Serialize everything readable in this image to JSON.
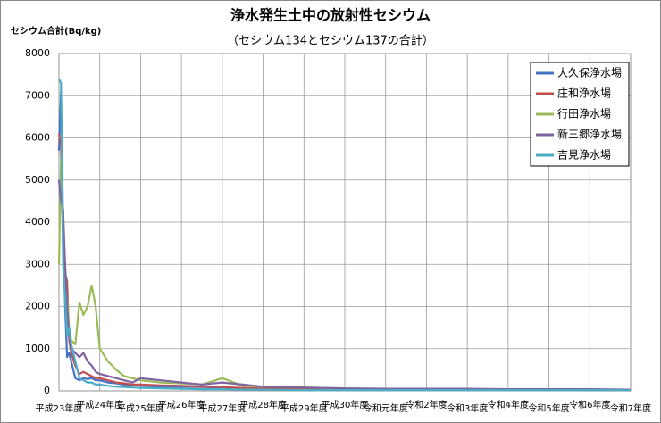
{
  "chart_data": {
    "type": "line",
    "title": "浄水発生土中の放射性セシウム",
    "subtitle": "（セシウム134とセシウム137の合計）",
    "y_label": "セシウム合計(Bq/kg)",
    "x": [
      0,
      0.05,
      0.1,
      0.15,
      0.2,
      0.25,
      0.3,
      0.4,
      0.5,
      0.6,
      0.7,
      0.8,
      0.9,
      1,
      1.2,
      1.4,
      1.6,
      1.8,
      2,
      2.5,
      3,
      3.5,
      4,
      4.5,
      5,
      6,
      7,
      8,
      9,
      10,
      11,
      12,
      13,
      14
    ],
    "xlim": [
      0,
      14
    ],
    "xticks": [
      {
        "value": 0,
        "label": "平成23年度"
      },
      {
        "value": 1,
        "label": "平成24年度"
      },
      {
        "value": 2,
        "label": "平成25年度"
      },
      {
        "value": 3,
        "label": "平成26年度"
      },
      {
        "value": 4,
        "label": "平成27年度"
      },
      {
        "value": 5,
        "label": "平成28年度"
      },
      {
        "value": 6,
        "label": "平成29年度"
      },
      {
        "value": 7,
        "label": "平成30年度"
      },
      {
        "value": 8,
        "label": "令和元年度"
      },
      {
        "value": 9,
        "label": "令和2年度"
      },
      {
        "value": 10,
        "label": "令和3年度"
      },
      {
        "value": 11,
        "label": "令和4年度"
      },
      {
        "value": 12,
        "label": "令和5年度"
      },
      {
        "value": 13,
        "label": "令和6年度"
      },
      {
        "value": 14,
        "label": "令和7年度"
      }
    ],
    "ylim": [
      0,
      8000
    ],
    "yticks": [
      0,
      1000,
      2000,
      3000,
      4000,
      5000,
      6000,
      7000,
      8000
    ],
    "grid": true,
    "legend": "top-right",
    "series": [
      {
        "name": "大久保浄水場",
        "color": "#4472c4",
        "values": [
          5700,
          7100,
          4000,
          2000,
          800,
          900,
          700,
          300,
          250,
          300,
          280,
          300,
          250,
          250,
          200,
          180,
          150,
          150,
          120,
          100,
          100,
          90,
          80,
          60,
          50,
          40,
          30,
          30,
          30,
          30,
          30,
          30,
          20,
          20
        ]
      },
      {
        "name": "庄和浄水場",
        "color": "#c0504d",
        "values": [
          6100,
          5800,
          3500,
          2800,
          2600,
          1200,
          900,
          600,
          400,
          450,
          400,
          350,
          300,
          300,
          250,
          200,
          180,
          150,
          150,
          130,
          120,
          100,
          90,
          70,
          60,
          50,
          40,
          30,
          30,
          30,
          30,
          30,
          20,
          20
        ]
      },
      {
        "name": "行田浄水場",
        "color": "#9bbb59",
        "values": [
          3000,
          5500,
          4200,
          2500,
          2200,
          1500,
          1200,
          1100,
          2100,
          1800,
          2000,
          2500,
          2000,
          1000,
          700,
          500,
          350,
          300,
          250,
          200,
          180,
          150,
          300,
          120,
          100,
          80,
          60,
          50,
          40,
          40,
          30,
          30,
          30,
          30
        ]
      },
      {
        "name": "新三郷浄水場",
        "color": "#8064a2",
        "values": [
          5000,
          4500,
          4300,
          3000,
          2000,
          1300,
          1000,
          900,
          800,
          900,
          700,
          600,
          450,
          400,
          350,
          300,
          250,
          200,
          300,
          250,
          200,
          150,
          200,
          150,
          100,
          80,
          60,
          50,
          50,
          50,
          40,
          40,
          40,
          30
        ]
      },
      {
        "name": "吉見浄水場",
        "color": "#4bacc6",
        "values": [
          7400,
          7300,
          3000,
          2200,
          1300,
          1500,
          1100,
          700,
          300,
          250,
          200,
          200,
          150,
          150,
          120,
          100,
          90,
          80,
          70,
          60,
          50,
          40,
          40,
          30,
          30,
          20,
          20,
          20,
          20,
          20,
          20,
          20,
          20,
          20
        ]
      }
    ]
  }
}
